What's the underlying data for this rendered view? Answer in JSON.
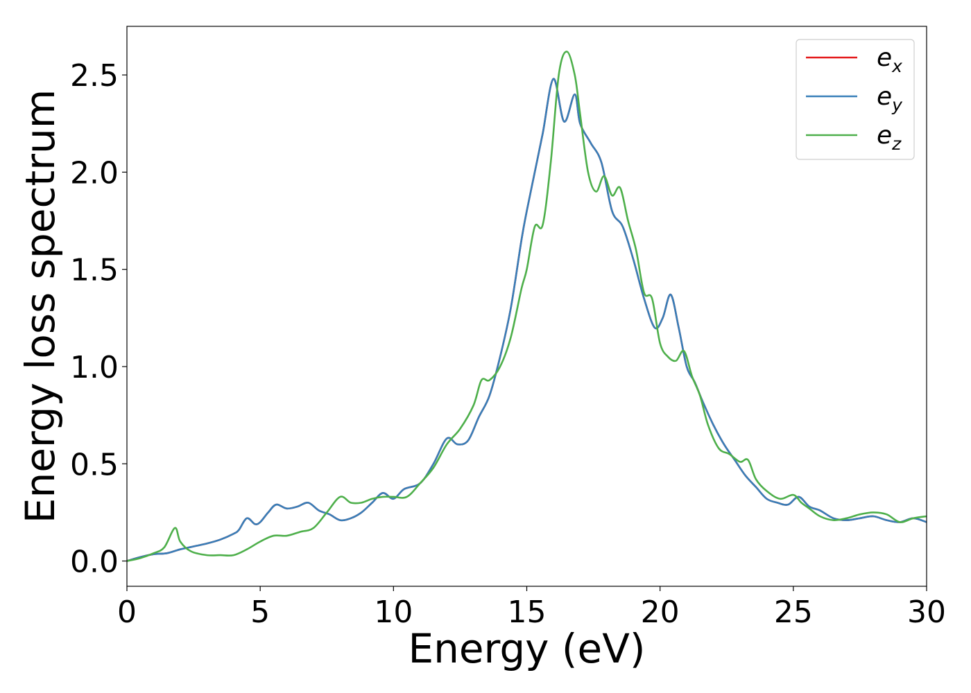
{
  "chart_data": {
    "type": "line",
    "xlabel": "Energy (eV)",
    "ylabel": "Energy loss spectrum",
    "xlim": [
      0,
      30
    ],
    "ylim": [
      -0.13,
      2.75
    ],
    "xticks": [
      0,
      5,
      10,
      15,
      20,
      25,
      30
    ],
    "xtick_labels": [
      "0",
      "5",
      "10",
      "15",
      "20",
      "25",
      "30"
    ],
    "yticks": [
      0.0,
      0.5,
      1.0,
      1.5,
      2.0,
      2.5
    ],
    "ytick_labels": [
      "0.0",
      "0.5",
      "1.0",
      "1.5",
      "2.0",
      "2.5"
    ],
    "grid": false,
    "legend": {
      "position": "top-right"
    },
    "series": [
      {
        "name": "e_x",
        "legend_base": "e",
        "legend_sub": "x",
        "color": "#e41a1c",
        "x": [
          0,
          0.5,
          1.0,
          1.5,
          2.0,
          2.5,
          3.0,
          3.5,
          4.0,
          4.2,
          4.5,
          4.8,
          5.0,
          5.3,
          5.6,
          6.0,
          6.4,
          6.8,
          7.2,
          7.6,
          8.0,
          8.4,
          8.8,
          9.2,
          9.6,
          10.0,
          10.4,
          11.0,
          11.5,
          12.0,
          12.4,
          12.8,
          13.2,
          13.6,
          14.0,
          14.4,
          14.8,
          15.0,
          15.3,
          15.6,
          16.0,
          16.4,
          16.8,
          17.0,
          17.4,
          17.8,
          18.2,
          18.6,
          19.0,
          19.4,
          19.8,
          20.1,
          20.4,
          20.7,
          21.0,
          21.3,
          21.6,
          22.0,
          22.4,
          22.8,
          23.2,
          23.6,
          24.0,
          24.4,
          24.8,
          25.2,
          25.6,
          26.0,
          26.5,
          27.0,
          27.5,
          28.0,
          28.5,
          29.0,
          29.5,
          30.0
        ],
        "y": [
          0.0,
          0.02,
          0.035,
          0.04,
          0.06,
          0.075,
          0.09,
          0.11,
          0.14,
          0.16,
          0.22,
          0.19,
          0.2,
          0.25,
          0.29,
          0.27,
          0.28,
          0.3,
          0.26,
          0.24,
          0.21,
          0.22,
          0.25,
          0.3,
          0.35,
          0.32,
          0.37,
          0.4,
          0.5,
          0.63,
          0.6,
          0.62,
          0.74,
          0.85,
          1.05,
          1.3,
          1.65,
          1.8,
          2.0,
          2.2,
          2.48,
          2.26,
          2.4,
          2.25,
          2.15,
          2.05,
          1.8,
          1.72,
          1.55,
          1.35,
          1.2,
          1.25,
          1.37,
          1.2,
          1.0,
          0.92,
          0.82,
          0.7,
          0.6,
          0.52,
          0.44,
          0.38,
          0.32,
          0.3,
          0.29,
          0.33,
          0.28,
          0.26,
          0.22,
          0.21,
          0.22,
          0.23,
          0.21,
          0.2,
          0.22,
          0.2
        ]
      },
      {
        "name": "e_y",
        "legend_base": "e",
        "legend_sub": "y",
        "color": "#377eb8",
        "x": [
          0,
          0.5,
          1.0,
          1.5,
          2.0,
          2.5,
          3.0,
          3.5,
          4.0,
          4.2,
          4.5,
          4.8,
          5.0,
          5.3,
          5.6,
          6.0,
          6.4,
          6.8,
          7.2,
          7.6,
          8.0,
          8.4,
          8.8,
          9.2,
          9.6,
          10.0,
          10.4,
          11.0,
          11.5,
          12.0,
          12.4,
          12.8,
          13.2,
          13.6,
          14.0,
          14.4,
          14.8,
          15.0,
          15.3,
          15.6,
          16.0,
          16.4,
          16.8,
          17.0,
          17.4,
          17.8,
          18.2,
          18.6,
          19.0,
          19.4,
          19.8,
          20.1,
          20.4,
          20.7,
          21.0,
          21.3,
          21.6,
          22.0,
          22.4,
          22.8,
          23.2,
          23.6,
          24.0,
          24.4,
          24.8,
          25.2,
          25.6,
          26.0,
          26.5,
          27.0,
          27.5,
          28.0,
          28.5,
          29.0,
          29.5,
          30.0
        ],
        "y": [
          0.0,
          0.02,
          0.035,
          0.04,
          0.06,
          0.075,
          0.09,
          0.11,
          0.14,
          0.16,
          0.22,
          0.19,
          0.2,
          0.25,
          0.29,
          0.27,
          0.28,
          0.3,
          0.26,
          0.24,
          0.21,
          0.22,
          0.25,
          0.3,
          0.35,
          0.32,
          0.37,
          0.4,
          0.5,
          0.63,
          0.6,
          0.62,
          0.74,
          0.85,
          1.05,
          1.3,
          1.65,
          1.8,
          2.0,
          2.2,
          2.48,
          2.26,
          2.4,
          2.25,
          2.15,
          2.05,
          1.8,
          1.72,
          1.55,
          1.35,
          1.2,
          1.25,
          1.37,
          1.2,
          1.0,
          0.92,
          0.82,
          0.7,
          0.6,
          0.52,
          0.44,
          0.38,
          0.32,
          0.3,
          0.29,
          0.33,
          0.28,
          0.26,
          0.22,
          0.21,
          0.22,
          0.23,
          0.21,
          0.2,
          0.22,
          0.2
        ]
      },
      {
        "name": "e_z",
        "legend_base": "e",
        "legend_sub": "z",
        "color": "#4daf4a",
        "x": [
          0,
          0.5,
          1.0,
          1.4,
          1.8,
          2.0,
          2.4,
          3.0,
          3.5,
          4.0,
          4.5,
          5.0,
          5.5,
          6.0,
          6.5,
          7.0,
          7.5,
          8.0,
          8.4,
          8.8,
          9.2,
          9.6,
          10.0,
          10.5,
          11.0,
          11.5,
          12.0,
          12.5,
          13.0,
          13.3,
          13.6,
          14.0,
          14.4,
          14.8,
          15.0,
          15.3,
          15.6,
          15.9,
          16.2,
          16.5,
          16.8,
          17.0,
          17.3,
          17.6,
          17.9,
          18.2,
          18.5,
          18.8,
          19.1,
          19.4,
          19.7,
          20.0,
          20.3,
          20.6,
          20.9,
          21.2,
          21.5,
          21.8,
          22.2,
          22.6,
          23.0,
          23.3,
          23.6,
          24.0,
          24.5,
          25.0,
          25.3,
          25.6,
          26.0,
          26.5,
          27.0,
          27.5,
          28.0,
          28.5,
          29.0,
          29.5,
          30.0
        ],
        "y": [
          0.0,
          0.015,
          0.04,
          0.07,
          0.17,
          0.1,
          0.05,
          0.03,
          0.03,
          0.03,
          0.06,
          0.1,
          0.13,
          0.13,
          0.15,
          0.17,
          0.25,
          0.33,
          0.3,
          0.3,
          0.32,
          0.33,
          0.33,
          0.33,
          0.4,
          0.48,
          0.6,
          0.68,
          0.8,
          0.93,
          0.93,
          1.0,
          1.15,
          1.4,
          1.5,
          1.72,
          1.73,
          2.05,
          2.5,
          2.62,
          2.5,
          2.3,
          2.0,
          1.9,
          1.98,
          1.88,
          1.92,
          1.75,
          1.6,
          1.38,
          1.35,
          1.12,
          1.05,
          1.03,
          1.08,
          0.95,
          0.85,
          0.7,
          0.58,
          0.55,
          0.51,
          0.52,
          0.42,
          0.36,
          0.32,
          0.34,
          0.3,
          0.27,
          0.23,
          0.21,
          0.22,
          0.24,
          0.25,
          0.24,
          0.2,
          0.22,
          0.23
        ]
      }
    ]
  }
}
